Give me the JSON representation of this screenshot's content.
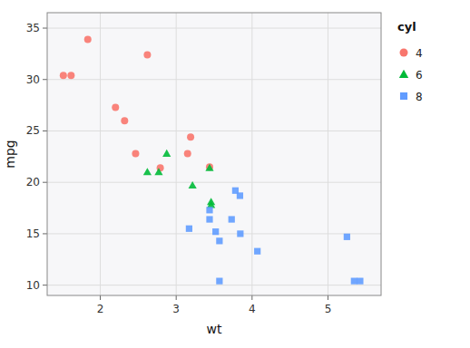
{
  "chart_data": {
    "type": "scatter",
    "xlabel": "wt",
    "ylabel": "mpg",
    "legend_title": "cyl",
    "legend": "right",
    "grid": true,
    "xlim": [
      1.3,
      5.7
    ],
    "ylim": [
      9.0,
      36.5
    ],
    "xticks": [
      2,
      3,
      4,
      5
    ],
    "yticks": [
      10,
      15,
      20,
      25,
      30,
      35
    ],
    "series": [
      {
        "name": "4",
        "color": "#F8766D",
        "marker": "circle",
        "x": [
          1.513,
          1.615,
          1.835,
          2.2,
          2.32,
          2.465,
          2.62,
          2.79,
          3.15,
          3.19,
          3.44
        ],
        "values": [
          30.4,
          30.4,
          33.9,
          27.3,
          26.0,
          22.8,
          32.4,
          21.4,
          22.8,
          24.4,
          21.5
        ]
      },
      {
        "name": "6",
        "color": "#00BA38",
        "marker": "triangle",
        "x": [
          2.62,
          2.77,
          2.875,
          3.215,
          3.44,
          3.46,
          3.46
        ],
        "values": [
          21.0,
          21.0,
          22.8,
          19.7,
          21.4,
          18.1,
          17.8
        ]
      },
      {
        "name": "8",
        "color": "#619CFF",
        "marker": "square",
        "x": [
          3.17,
          3.44,
          3.44,
          3.52,
          3.57,
          3.57,
          3.73,
          3.78,
          3.84,
          3.845,
          4.07,
          5.25,
          5.345,
          5.424
        ],
        "values": [
          15.5,
          16.4,
          17.3,
          15.2,
          10.4,
          14.3,
          16.4,
          19.2,
          18.7,
          15.0,
          13.3,
          14.7,
          10.4,
          10.4
        ]
      }
    ]
  }
}
